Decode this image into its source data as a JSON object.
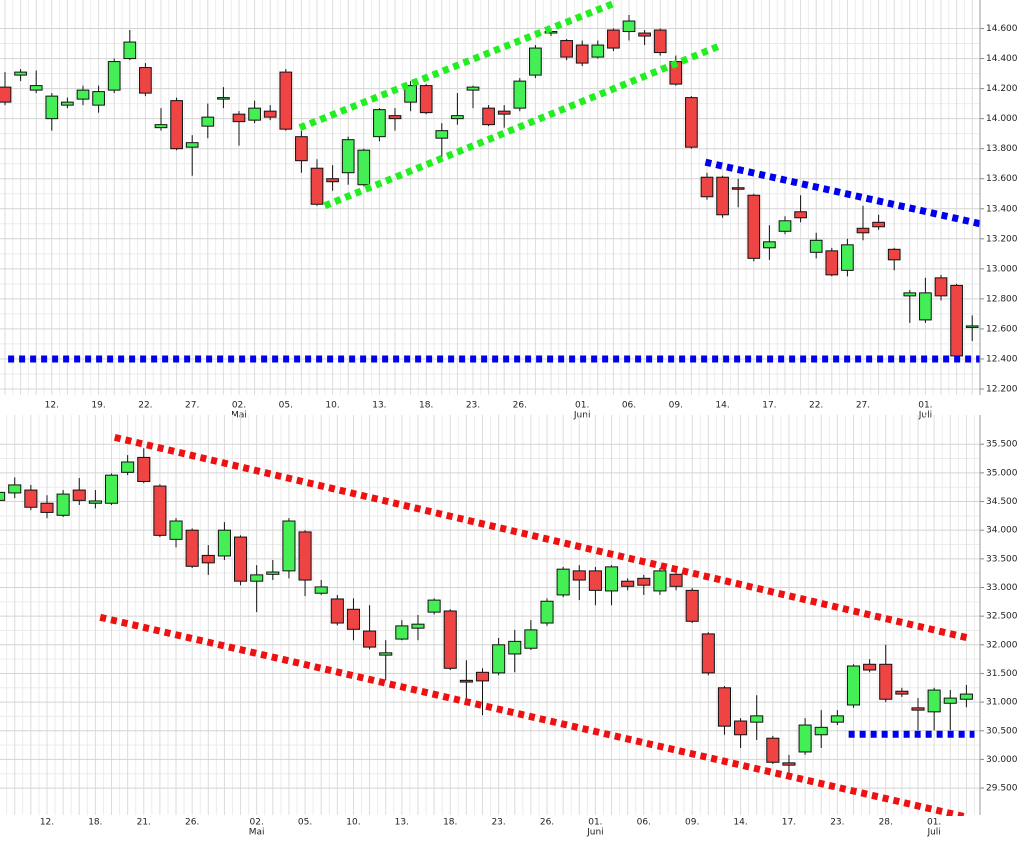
{
  "chart_data": [
    {
      "type": "candlestick",
      "grid": true,
      "up_color": "#44ee55",
      "down_color": "#ee4444",
      "categories": [
        null,
        null,
        null,
        "12.",
        null,
        null,
        "19.",
        null,
        null,
        "22.",
        null,
        null,
        "27.",
        null,
        null,
        "02.",
        null,
        null,
        "05.",
        null,
        null,
        "10.",
        null,
        null,
        "13.",
        null,
        null,
        "18.",
        null,
        null,
        "23.",
        null,
        null,
        "26.",
        null,
        null,
        null,
        "01.",
        null,
        null,
        "06.",
        null,
        null,
        "09.",
        null,
        null,
        "14.",
        null,
        null,
        "17.",
        null,
        null,
        "22.",
        null,
        null,
        "27.",
        null,
        null,
        null,
        "01.",
        null,
        null,
        null
      ],
      "months": [
        {
          "index": 15,
          "label": "Mai"
        },
        {
          "index": 37,
          "label": "Juni"
        },
        {
          "index": 59,
          "label": "Juli"
        }
      ],
      "open": [
        14210,
        14290,
        14190,
        14000,
        14090,
        14130,
        14090,
        14190,
        14400,
        14340,
        13940,
        14120,
        13810,
        13950,
        14130,
        14030,
        13990,
        14050,
        14310,
        13880,
        13670,
        13600,
        13640,
        13560,
        13880,
        14020,
        14110,
        14220,
        13870,
        14000,
        14190,
        14070,
        14050,
        14070,
        14290,
        14570,
        14520,
        14490,
        14410,
        14590,
        14580,
        14570,
        14590,
        14380,
        14140,
        13610,
        13610,
        13540,
        13490,
        13140,
        13250,
        13380,
        13110,
        13120,
        12990,
        13270,
        13310,
        13130,
        12820,
        12660,
        12940,
        12890,
        12610
      ],
      "high": [
        14310,
        14330,
        14320,
        14170,
        14140,
        14220,
        14220,
        14400,
        14590,
        14370,
        14070,
        14140,
        13890,
        14100,
        14210,
        14050,
        14120,
        14090,
        14330,
        13920,
        13730,
        13690,
        13880,
        13800,
        14070,
        14070,
        14250,
        14230,
        13970,
        14170,
        14220,
        14090,
        14090,
        14270,
        14490,
        14600,
        14530,
        14520,
        14520,
        14600,
        14690,
        14590,
        14600,
        14420,
        14150,
        13640,
        13620,
        13600,
        13500,
        13290,
        13350,
        13490,
        13240,
        13140,
        13200,
        13420,
        13360,
        13140,
        12860,
        12940,
        12960,
        12900,
        12690
      ],
      "low": [
        14090,
        14250,
        14170,
        13920,
        14070,
        14090,
        14040,
        14170,
        14390,
        14150,
        13920,
        13790,
        13620,
        13870,
        14070,
        13820,
        13970,
        13990,
        13920,
        13640,
        13420,
        13520,
        13560,
        13550,
        13850,
        13920,
        14050,
        14030,
        13720,
        13960,
        14070,
        13950,
        13940,
        14050,
        14270,
        14550,
        14390,
        14350,
        14400,
        14450,
        14520,
        14490,
        14420,
        14220,
        13800,
        13460,
        13340,
        13410,
        13050,
        13060,
        13230,
        13310,
        13070,
        12950,
        12950,
        13190,
        13260,
        12990,
        12640,
        12640,
        12790,
        12400,
        12520
      ],
      "close": [
        14110,
        14310,
        14220,
        14150,
        14110,
        14190,
        14180,
        14380,
        14510,
        14170,
        13960,
        13800,
        13840,
        14010,
        14140,
        13980,
        14070,
        14010,
        13930,
        13720,
        13430,
        13580,
        13860,
        13790,
        14060,
        14000,
        14220,
        14040,
        13920,
        14020,
        14210,
        13960,
        14030,
        14250,
        14470,
        14580,
        14410,
        14370,
        14490,
        14470,
        14650,
        14550,
        14440,
        14230,
        13810,
        13480,
        13360,
        13530,
        13070,
        13180,
        13320,
        13340,
        13190,
        12960,
        13160,
        13240,
        13280,
        13060,
        12840,
        12840,
        12820,
        12420,
        12620
      ],
      "ylim": [
        12160,
        14790
      ],
      "yticks": [
        {
          "value": 12200,
          "label": "12.200"
        },
        {
          "value": 12400,
          "label": "12.400"
        },
        {
          "value": 12600,
          "label": "12.600"
        },
        {
          "value": 12800,
          "label": "12.800"
        },
        {
          "value": 13000,
          "label": "13.000"
        },
        {
          "value": 13200,
          "label": "13.200"
        },
        {
          "value": 13400,
          "label": "13.400"
        },
        {
          "value": 13600,
          "label": "13.600"
        },
        {
          "value": 13800,
          "label": "13.800"
        },
        {
          "value": 14000,
          "label": "14.000"
        },
        {
          "value": 14200,
          "label": "14.200"
        },
        {
          "value": 14400,
          "label": "14.400"
        },
        {
          "value": 14600,
          "label": "14.600"
        }
      ],
      "trendlines": [
        {
          "color": "#22ee22",
          "from": [
            18.9,
            13940
          ],
          "to": [
            39.1,
            14770
          ]
        },
        {
          "color": "#22ee22",
          "from": [
            20.5,
            13420
          ],
          "to": [
            45.7,
            14480
          ]
        },
        {
          "color": "#0000ee",
          "from": [
            44.9,
            13710
          ],
          "to": [
            63.8,
            13270
          ]
        },
        {
          "color": "#0000ee",
          "from": [
            0.2,
            12400
          ],
          "to": [
            63.8,
            12400
          ]
        }
      ]
    },
    {
      "type": "candlestick",
      "grid": true,
      "up_color": "#44ee55",
      "down_color": "#ee4444",
      "categories": [
        null,
        null,
        null,
        "12.",
        null,
        null,
        "18.",
        null,
        null,
        "21.",
        null,
        null,
        "26.",
        null,
        null,
        null,
        "02.",
        null,
        null,
        "05.",
        null,
        null,
        "10.",
        null,
        null,
        "13.",
        null,
        null,
        "18.",
        null,
        null,
        "23.",
        null,
        null,
        "26.",
        null,
        null,
        "01.",
        null,
        null,
        "06.",
        null,
        null,
        "09.",
        null,
        null,
        "14.",
        null,
        null,
        "17.",
        null,
        null,
        "23.",
        null,
        null,
        "28.",
        null,
        null,
        "01.",
        null,
        null
      ],
      "months": [
        {
          "index": 16,
          "label": "Mai"
        },
        {
          "index": 37,
          "label": "Juni"
        },
        {
          "index": 58,
          "label": "Juli"
        }
      ],
      "open": [
        34520,
        34650,
        34700,
        34470,
        34260,
        34700,
        34470,
        34470,
        35010,
        35270,
        34770,
        33840,
        34000,
        33560,
        33550,
        33880,
        33110,
        33230,
        33290,
        33970,
        32900,
        32800,
        32620,
        32240,
        31820,
        32100,
        32290,
        32570,
        32590,
        31380,
        31520,
        31510,
        31840,
        31940,
        32380,
        32870,
        33290,
        33290,
        32940,
        33110,
        33160,
        32940,
        33230,
        32950,
        32190,
        31250,
        30670,
        30650,
        30370,
        29940,
        30130,
        30430,
        30650,
        30950,
        31660,
        31660,
        31190,
        30900,
        30830,
        30980,
        31050
      ],
      "high": [
        34750,
        34920,
        34790,
        34610,
        34700,
        34910,
        34700,
        34990,
        35310,
        35430,
        34800,
        34210,
        34030,
        33740,
        34140,
        33910,
        33390,
        33480,
        34210,
        34000,
        33130,
        32870,
        32810,
        32690,
        32080,
        32430,
        32520,
        32810,
        32620,
        31730,
        31590,
        32120,
        32260,
        32430,
        32810,
        33360,
        33390,
        33360,
        33390,
        33160,
        33220,
        33340,
        33360,
        32990,
        32220,
        31280,
        30720,
        31120,
        30410,
        30080,
        30720,
        30860,
        30860,
        31660,
        31750,
        32000,
        31250,
        31070,
        31250,
        31210,
        31300
      ],
      "low": [
        34350,
        34560,
        34350,
        34210,
        34230,
        34440,
        34380,
        34440,
        34960,
        34820,
        33880,
        33700,
        33340,
        33220,
        33480,
        33040,
        32570,
        33130,
        33160,
        32850,
        32870,
        32340,
        32080,
        31920,
        31380,
        32080,
        32080,
        32530,
        31560,
        31030,
        30770,
        31470,
        31520,
        31910,
        32330,
        32830,
        32780,
        32690,
        32690,
        32950,
        32870,
        32870,
        32950,
        32380,
        31470,
        30430,
        30200,
        30340,
        29920,
        29730,
        30080,
        30200,
        30600,
        30900,
        31520,
        31000,
        31090,
        30510,
        30510,
        30510,
        30910
      ],
      "close": [
        34660,
        34790,
        34400,
        34310,
        34630,
        34520,
        34510,
        34960,
        35190,
        34850,
        33910,
        34160,
        33370,
        33430,
        34000,
        33110,
        33220,
        33270,
        34160,
        33130,
        33010,
        32380,
        32270,
        31960,
        31860,
        32330,
        32360,
        32780,
        31590,
        31350,
        31370,
        32000,
        32060,
        32260,
        32760,
        33320,
        33130,
        32950,
        33360,
        33020,
        33040,
        33290,
        33020,
        32410,
        31510,
        30580,
        30430,
        30760,
        29950,
        29900,
        30600,
        30560,
        30760,
        31630,
        31560,
        31050,
        31140,
        30860,
        31210,
        31070,
        31140
      ],
      "ylim": [
        29030,
        36010
      ],
      "yticks": [
        {
          "value": 29500,
          "label": "29.500"
        },
        {
          "value": 30000,
          "label": "30.000"
        },
        {
          "value": 30500,
          "label": "30.500"
        },
        {
          "value": 31000,
          "label": "31.000"
        },
        {
          "value": 31500,
          "label": "31.500"
        },
        {
          "value": 32000,
          "label": "32.000"
        },
        {
          "value": 32500,
          "label": "32.500"
        },
        {
          "value": 33000,
          "label": "33.000"
        },
        {
          "value": 33500,
          "label": "33.500"
        },
        {
          "value": 34000,
          "label": "34.000"
        },
        {
          "value": 34500,
          "label": "34.500"
        },
        {
          "value": 35000,
          "label": "35.000"
        },
        {
          "value": 35500,
          "label": "35.500"
        }
      ],
      "trendlines": [
        {
          "color": "#ee1111",
          "from": [
            7.2,
            35620
          ],
          "to": [
            60.1,
            32120
          ]
        },
        {
          "color": "#ee1111",
          "from": [
            6.3,
            32480
          ],
          "to": [
            59.9,
            29000
          ]
        },
        {
          "color": "#0000ee",
          "from": [
            52.7,
            30440
          ],
          "to": [
            60.5,
            30440
          ]
        }
      ]
    }
  ]
}
